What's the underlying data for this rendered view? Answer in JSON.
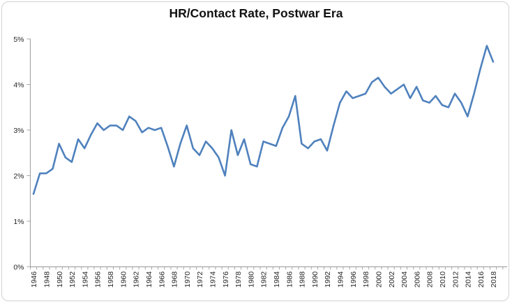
{
  "chart": {
    "title": "HR/Contact Rate, Postwar Era"
  },
  "chart_data": {
    "type": "line",
    "title": "HR/Contact Rate, Postwar Era",
    "xlabel": "",
    "ylabel": "",
    "ylim": [
      0,
      5
    ],
    "y_tick_labels": [
      "0%",
      "1%",
      "2%",
      "3%",
      "4%",
      "5%"
    ],
    "x_tick_label_step": 2,
    "x_tick_labels": [
      "1946",
      "1948",
      "1950",
      "1952",
      "1954",
      "1956",
      "1958",
      "1960",
      "1962",
      "1964",
      "1966",
      "1968",
      "1970",
      "1972",
      "1974",
      "1976",
      "1978",
      "1980",
      "1982",
      "1984",
      "1986",
      "1988",
      "1990",
      "1992",
      "1994",
      "1996",
      "1998",
      "2000",
      "2002",
      "2004",
      "2006",
      "2008",
      "2010",
      "2012",
      "2014",
      "2016",
      "2018"
    ],
    "grid": "off",
    "legend": "none",
    "line_color": "#4F81BD",
    "axis_color": "#a6a6a6",
    "label_color": "#262626",
    "x": [
      1946,
      1947,
      1948,
      1949,
      1950,
      1951,
      1952,
      1953,
      1954,
      1955,
      1956,
      1957,
      1958,
      1959,
      1960,
      1961,
      1962,
      1963,
      1964,
      1965,
      1966,
      1967,
      1968,
      1969,
      1970,
      1971,
      1972,
      1973,
      1974,
      1975,
      1976,
      1977,
      1978,
      1979,
      1980,
      1981,
      1982,
      1983,
      1984,
      1985,
      1986,
      1987,
      1988,
      1989,
      1990,
      1991,
      1992,
      1993,
      1994,
      1995,
      1996,
      1997,
      1998,
      1999,
      2000,
      2001,
      2002,
      2003,
      2004,
      2005,
      2006,
      2007,
      2008,
      2009,
      2010,
      2011,
      2012,
      2013,
      2014,
      2015,
      2016,
      2017,
      2018
    ],
    "values": [
      1.6,
      2.05,
      2.05,
      2.15,
      2.7,
      2.4,
      2.3,
      2.8,
      2.6,
      2.9,
      3.15,
      3.0,
      3.1,
      3.1,
      3.0,
      3.3,
      3.2,
      2.95,
      3.05,
      3.0,
      3.05,
      2.65,
      2.2,
      2.7,
      3.1,
      2.6,
      2.45,
      2.75,
      2.6,
      2.4,
      2.0,
      3.0,
      2.45,
      2.8,
      2.25,
      2.2,
      2.75,
      2.7,
      2.65,
      3.05,
      3.3,
      3.75,
      2.7,
      2.6,
      2.75,
      2.8,
      2.55,
      3.1,
      3.6,
      3.85,
      3.7,
      3.75,
      3.8,
      4.05,
      4.15,
      3.95,
      3.8,
      3.9,
      4.0,
      3.7,
      3.95,
      3.65,
      3.6,
      3.75,
      3.55,
      3.5,
      3.8,
      3.6,
      3.3,
      3.8,
      4.35,
      4.85,
      4.5
    ]
  }
}
